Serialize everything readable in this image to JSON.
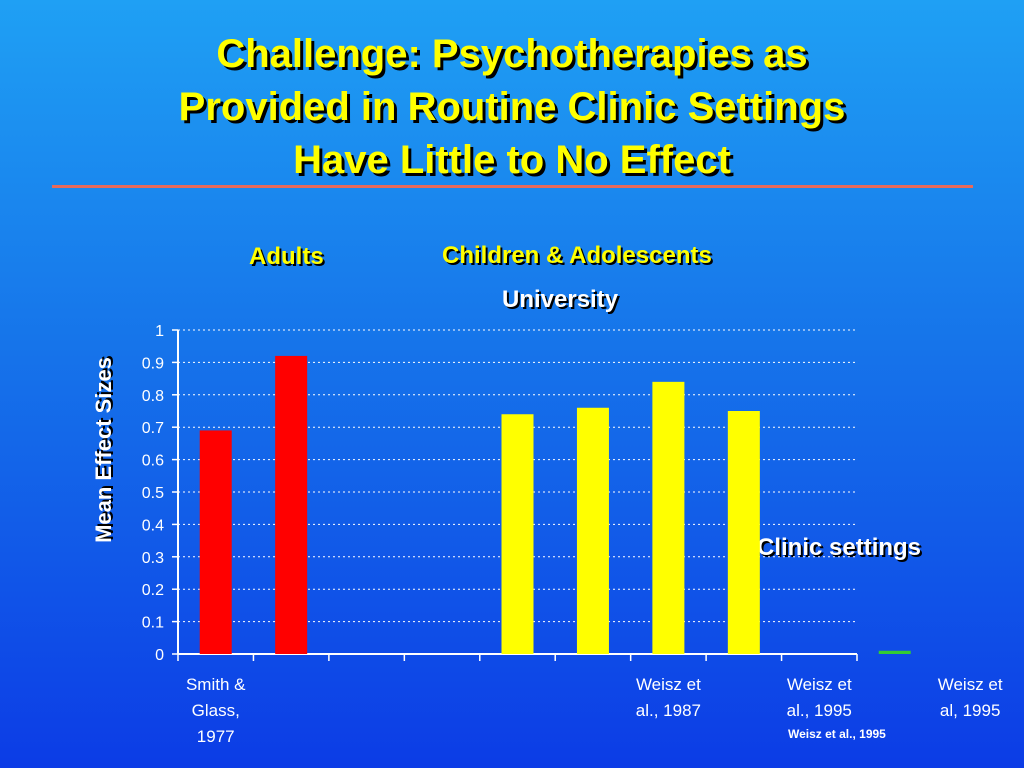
{
  "title_lines": [
    "Challenge:  Psychotherapies as",
    "Provided in Routine Clinic Settings",
    "Have Little to No Effect"
  ],
  "labels": {
    "adults": "Adults",
    "children": "Children & Adolescents",
    "university": "University",
    "clinic": "Clinic settings",
    "citation": "Weisz et al., 1995"
  },
  "colors": {
    "adults": "#ff0000",
    "children_university": "#ffff00",
    "clinic": "#33cc33",
    "title": "#ffff00",
    "rule": "#e86a5a"
  },
  "chart_data": {
    "type": "bar",
    "ylabel": "Mean Effect  Sizes",
    "ylim": [
      0,
      1
    ],
    "yticks": [
      "0",
      "0.1",
      "0.2",
      "0.3",
      "0.4",
      "0.5",
      "0.6",
      "0.7",
      "0.8",
      "0.9",
      "1"
    ],
    "grid": "horizontal dotted",
    "category_labels": [
      [
        "Smith &",
        "Glass,",
        "1977"
      ],
      [],
      [],
      [
        "Weisz et",
        "al., 1987"
      ],
      [
        "Weisz et",
        "al., 1995"
      ],
      [
        "Weisz et",
        "al, 1995"
      ]
    ],
    "bars": [
      {
        "slot": 0,
        "value": 0.69,
        "group": "adults"
      },
      {
        "slot": 1,
        "value": 0.92,
        "group": "adults"
      },
      {
        "slot": 4,
        "value": 0.74,
        "group": "children_university"
      },
      {
        "slot": 5,
        "value": 0.76,
        "group": "children_university"
      },
      {
        "slot": 6,
        "value": 0.84,
        "group": "children_university"
      },
      {
        "slot": 7,
        "value": 0.75,
        "group": "children_university"
      },
      {
        "slot": 9,
        "value": 0.01,
        "group": "clinic"
      }
    ]
  }
}
